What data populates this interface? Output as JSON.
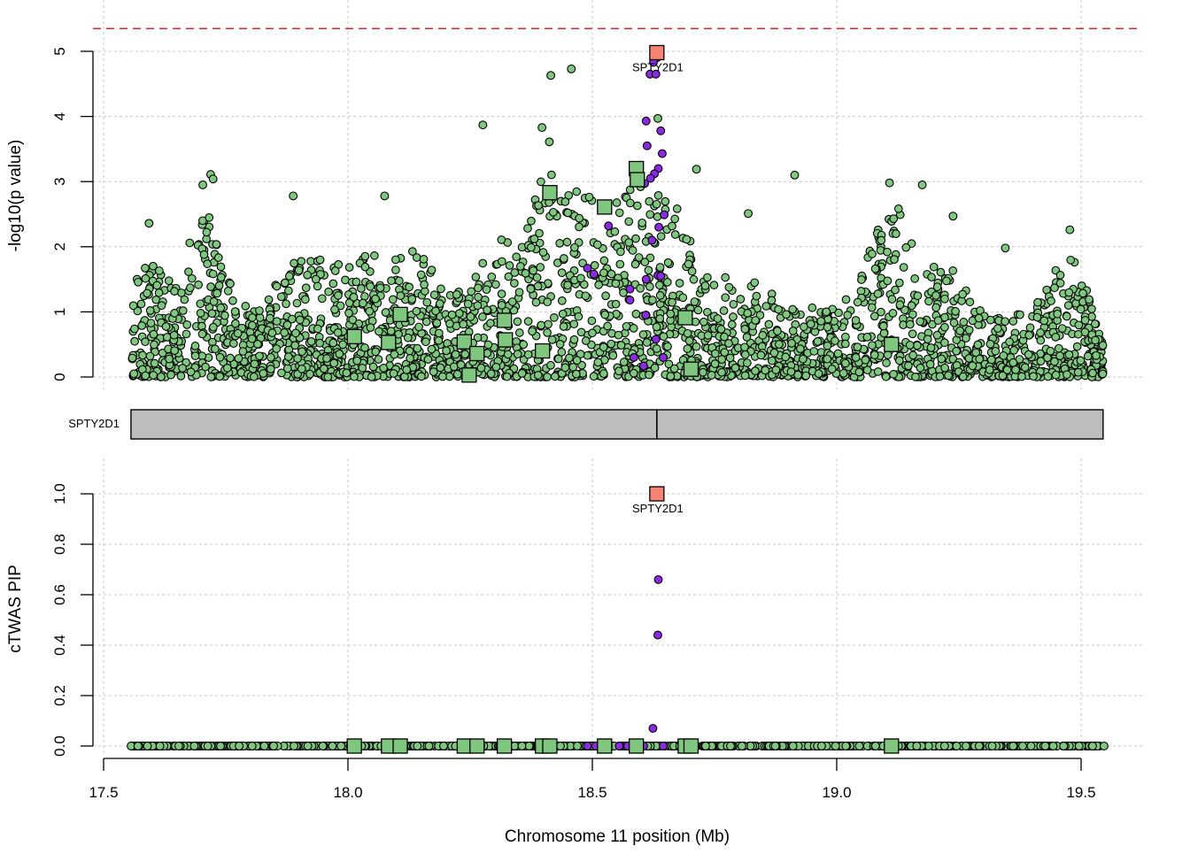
{
  "chart_data": [
    {
      "panel": "association",
      "type": "scatter",
      "ylabel": "-log10(p value)",
      "xlim": [
        17.5,
        19.55
      ],
      "ylim": [
        0,
        5.4
      ],
      "yticks": [
        "0",
        "1",
        "2",
        "3",
        "4",
        "5"
      ],
      "threshold_line": {
        "y": 5.35,
        "color": "#e8212b"
      },
      "grid": true,
      "series": [
        {
          "marker": "square",
          "color": "#f78374",
          "points": [
            {
              "x": 18.632,
              "y": 4.98,
              "label": "SPTY2D1"
            }
          ]
        },
        {
          "marker": "square",
          "color": "#7fc67f",
          "points": [
            {
              "x": 18.013,
              "y": 0.62
            },
            {
              "x": 18.083,
              "y": 0.53
            },
            {
              "x": 18.107,
              "y": 0.96
            },
            {
              "x": 18.238,
              "y": 0.54
            },
            {
              "x": 18.248,
              "y": 0.03
            },
            {
              "x": 18.264,
              "y": 0.36
            },
            {
              "x": 18.32,
              "y": 0.87
            },
            {
              "x": 18.322,
              "y": 0.57
            },
            {
              "x": 18.398,
              "y": 0.4
            },
            {
              "x": 18.413,
              "y": 2.83
            },
            {
              "x": 18.525,
              "y": 2.61
            },
            {
              "x": 18.59,
              "y": 3.2
            },
            {
              "x": 18.592,
              "y": 3.03
            },
            {
              "x": 18.69,
              "y": 0.91
            },
            {
              "x": 18.702,
              "y": 0.12
            },
            {
              "x": 19.112,
              "y": 0.5
            }
          ]
        },
        {
          "marker": "circle",
          "color": "#7fc67f",
          "note": "thousands of variant points, approximated by the page script",
          "points": [
            {
              "x": 18.415,
              "y": 4.63
            },
            {
              "x": 18.457,
              "y": 4.73
            },
            {
              "x": 18.276,
              "y": 3.87
            },
            {
              "x": 18.397,
              "y": 3.83
            },
            {
              "x": 18.412,
              "y": 3.61
            },
            {
              "x": 17.719,
              "y": 3.11
            },
            {
              "x": 17.724,
              "y": 3.04
            },
            {
              "x": 17.703,
              "y": 2.95
            },
            {
              "x": 17.888,
              "y": 2.78
            },
            {
              "x": 18.075,
              "y": 2.78
            },
            {
              "x": 18.914,
              "y": 3.1
            },
            {
              "x": 19.108,
              "y": 2.98
            },
            {
              "x": 19.175,
              "y": 2.95
            },
            {
              "x": 18.713,
              "y": 3.19
            },
            {
              "x": 19.238,
              "y": 2.47
            },
            {
              "x": 18.819,
              "y": 2.51
            },
            {
              "x": 19.345,
              "y": 1.98
            },
            {
              "x": 19.477,
              "y": 2.26
            },
            {
              "x": 17.593,
              "y": 2.36
            },
            {
              "x": 18.634,
              "y": 3.97
            }
          ]
        },
        {
          "marker": "circle",
          "color": "#8a2be2",
          "points": [
            {
              "x": 18.632,
              "y": 4.9
            },
            {
              "x": 18.625,
              "y": 4.83
            },
            {
              "x": 18.618,
              "y": 4.65
            },
            {
              "x": 18.63,
              "y": 4.65
            },
            {
              "x": 18.61,
              "y": 3.93
            },
            {
              "x": 18.64,
              "y": 3.78
            },
            {
              "x": 18.612,
              "y": 3.55
            },
            {
              "x": 18.643,
              "y": 3.43
            },
            {
              "x": 18.635,
              "y": 3.2
            },
            {
              "x": 18.627,
              "y": 3.12
            },
            {
              "x": 18.619,
              "y": 3.05
            },
            {
              "x": 18.607,
              "y": 2.97
            },
            {
              "x": 18.647,
              "y": 2.49
            },
            {
              "x": 18.636,
              "y": 2.3
            },
            {
              "x": 18.622,
              "y": 2.1
            },
            {
              "x": 18.634,
              "y": 1.56
            },
            {
              "x": 18.61,
              "y": 1.5
            },
            {
              "x": 18.577,
              "y": 1.35
            },
            {
              "x": 18.577,
              "y": 1.18
            },
            {
              "x": 18.61,
              "y": 0.95
            },
            {
              "x": 18.609,
              "y": 0.95
            },
            {
              "x": 18.63,
              "y": 0.58
            },
            {
              "x": 18.585,
              "y": 0.3
            },
            {
              "x": 18.605,
              "y": 0.17
            },
            {
              "x": 18.645,
              "y": 0.3
            },
            {
              "x": 18.49,
              "y": 1.67
            },
            {
              "x": 18.503,
              "y": 1.58
            },
            {
              "x": 18.533,
              "y": 2.32
            },
            {
              "x": 18.64,
              "y": 1.55
            }
          ]
        }
      ]
    },
    {
      "panel": "gene-track",
      "type": "gene",
      "label": "SPTY2D1",
      "start": 17.556,
      "end": 19.545,
      "marker": 18.632
    },
    {
      "panel": "pip",
      "type": "scatter",
      "xlabel": "Chromosome 11 position (Mb)",
      "ylabel": "cTWAS PIP",
      "xlim": [
        17.5,
        19.55
      ],
      "ylim": [
        0,
        1.0
      ],
      "xticks": [
        "17.5",
        "18.0",
        "18.5",
        "19.0",
        "19.5"
      ],
      "yticks": [
        "0.0",
        "0.2",
        "0.4",
        "0.6",
        "0.8",
        "1.0"
      ],
      "grid": true,
      "series": [
        {
          "marker": "square",
          "color": "#f78374",
          "points": [
            {
              "x": 18.632,
              "y": 1.0,
              "label": "SPTY2D1"
            }
          ]
        },
        {
          "marker": "square",
          "color": "#7fc67f",
          "points": [
            {
              "x": 18.013,
              "y": 0
            },
            {
              "x": 18.083,
              "y": 0
            },
            {
              "x": 18.107,
              "y": 0
            },
            {
              "x": 18.238,
              "y": 0
            },
            {
              "x": 18.264,
              "y": 0
            },
            {
              "x": 18.32,
              "y": 0
            },
            {
              "x": 18.398,
              "y": 0
            },
            {
              "x": 18.413,
              "y": 0
            },
            {
              "x": 18.525,
              "y": 0
            },
            {
              "x": 18.59,
              "y": 0
            },
            {
              "x": 18.69,
              "y": 0
            },
            {
              "x": 18.702,
              "y": 0
            },
            {
              "x": 19.112,
              "y": 0
            }
          ]
        },
        {
          "marker": "circle",
          "color": "#8a2be2",
          "points": [
            {
              "x": 18.635,
              "y": 0.66
            },
            {
              "x": 18.634,
              "y": 0.44
            },
            {
              "x": 18.624,
              "y": 0.07
            },
            {
              "x": 18.49,
              "y": 0
            },
            {
              "x": 18.507,
              "y": 0
            },
            {
              "x": 18.555,
              "y": 0
            },
            {
              "x": 18.572,
              "y": 0
            },
            {
              "x": 18.605,
              "y": 0
            },
            {
              "x": 18.645,
              "y": 0
            }
          ]
        },
        {
          "marker": "circle",
          "color": "#7fc67f",
          "points": [
            {
              "x": 19.547,
              "y": 0
            }
          ]
        }
      ]
    }
  ]
}
